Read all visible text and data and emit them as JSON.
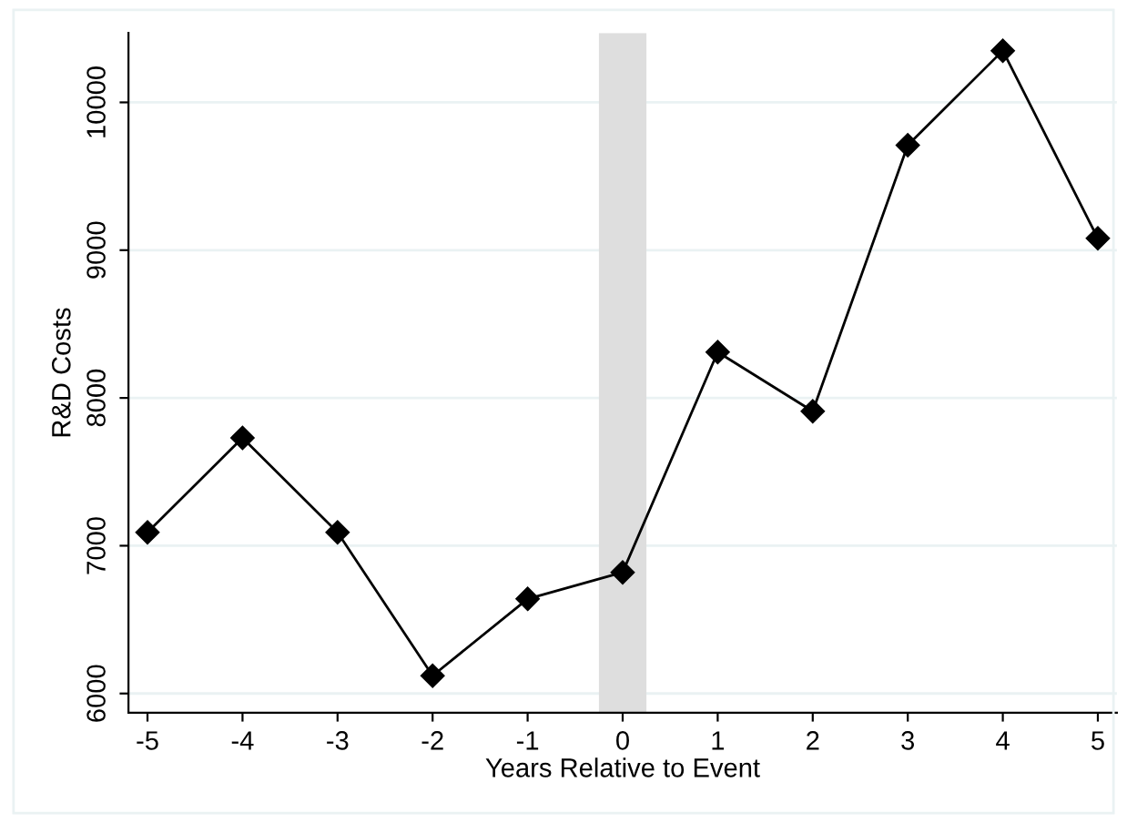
{
  "chart_data": {
    "type": "line",
    "xlabel": "Years Relative to Event",
    "ylabel": "R&D Costs",
    "x": [
      -5,
      -4,
      -3,
      -2,
      -1,
      0,
      1,
      2,
      3,
      4,
      5
    ],
    "series": [
      {
        "color": "#000000",
        "values": [
          7090,
          7730,
          7090,
          6120,
          6640,
          6820,
          8310,
          7910,
          9710,
          10350,
          9080
        ]
      }
    ],
    "xlim": [
      -5.2,
      5.2
    ],
    "ylim": [
      5870,
      10470
    ],
    "xticks": [
      -5,
      -4,
      -3,
      -2,
      -1,
      0,
      1,
      2,
      3,
      4,
      5
    ],
    "yticks": [
      6000,
      7000,
      8000,
      9000,
      10000
    ],
    "bands": [
      {
        "axis": "x",
        "from": -0.25,
        "to": 0.25,
        "color": "#dedede"
      }
    ],
    "grid": "y",
    "marker": "diamond",
    "line_style": "solid"
  }
}
